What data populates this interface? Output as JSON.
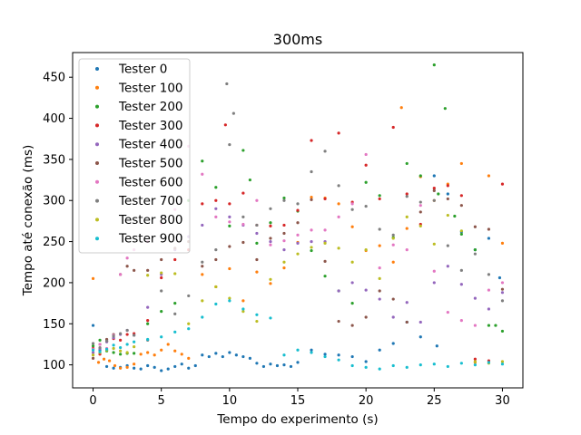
{
  "chart_data": {
    "type": "scatter",
    "title": "300ms",
    "xlabel": "Tempo do experimento (s)",
    "ylabel": "Tempo até conexão (ms)",
    "xlim": [
      -1.5,
      31.5
    ],
    "ylim": [
      72,
      480
    ],
    "xticks": [
      0,
      5,
      10,
      15,
      20,
      25,
      30
    ],
    "yticks": [
      100,
      150,
      200,
      250,
      300,
      350,
      400,
      450
    ],
    "grid": false,
    "legend_position": "top-left",
    "series": [
      {
        "name": "Tester 0",
        "color": "#1f77b4",
        "x": [
          0,
          0.5,
          1,
          1.5,
          2,
          2.5,
          3,
          3.5,
          4,
          4.5,
          5,
          5.5,
          6,
          6.5,
          7,
          7.5,
          8,
          8.5,
          9,
          9.5,
          10,
          10.5,
          11,
          11.5,
          12,
          12.5,
          13,
          13.5,
          14,
          14.5,
          15,
          16,
          17,
          18,
          19,
          20,
          21,
          22,
          23,
          24,
          25,
          25.2,
          26,
          27,
          28,
          29,
          29.8
        ],
        "y": [
          148,
          118,
          98,
          96,
          97,
          99,
          96,
          95,
          99,
          97,
          93,
          95,
          98,
          101,
          96,
          99,
          112,
          110,
          114,
          110,
          115,
          112,
          110,
          108,
          102,
          98,
          101,
          99,
          100,
          98,
          103,
          118,
          113,
          112,
          110,
          104,
          118,
          126,
          152,
          134,
          330,
          123,
          308,
          262,
          240,
          254,
          206
        ]
      },
      {
        "name": "Tester 100",
        "color": "#ff7f0e",
        "x": [
          0,
          0.4,
          0.8,
          1.2,
          1.6,
          2,
          2.5,
          3,
          3.5,
          4,
          4.5,
          5,
          5.5,
          6,
          6.5,
          7,
          8,
          9,
          10,
          11,
          12,
          13,
          14,
          15,
          16,
          17,
          18,
          19,
          20,
          21,
          22,
          22.6,
          23,
          24,
          25,
          26,
          27,
          28,
          29,
          30
        ],
        "y": [
          205,
          103,
          107,
          105,
          99,
          96,
          97,
          101,
          113,
          115,
          112,
          118,
          125,
          117,
          113,
          108,
          210,
          195,
          217,
          178,
          213,
          199,
          218,
          249,
          304,
          303,
          296,
          268,
          239,
          245,
          225,
          413,
          266,
          329,
          300,
          320,
          345,
          103,
          330,
          248
        ]
      },
      {
        "name": "Tester 200",
        "color": "#2ca02c",
        "x": [
          0,
          0.5,
          1,
          1.5,
          2,
          2.5,
          3,
          4,
          5,
          6,
          7,
          8,
          9,
          10,
          11,
          11.5,
          12,
          13,
          14,
          15,
          16,
          17,
          18,
          19,
          20,
          21,
          22,
          23,
          24,
          25,
          25.3,
          25.8,
          26.5,
          27,
          28,
          29,
          29.5,
          30
        ],
        "y": [
          123,
          130,
          117,
          115,
          113,
          114,
          114,
          150,
          165,
          175,
          300,
          348,
          316,
          269,
          361,
          325,
          248,
          273,
          303,
          287,
          239,
          208,
          190,
          175,
          322,
          306,
          255,
          345,
          330,
          465,
          308,
          412,
          281,
          259,
          240,
          148,
          148,
          141
        ]
      },
      {
        "name": "Tester 300",
        "color": "#d62728",
        "x": [
          0,
          0.5,
          1,
          1.5,
          2,
          2.5,
          3,
          4,
          5,
          6,
          7,
          8,
          9,
          9.7,
          10,
          11,
          12,
          13,
          14,
          15,
          16,
          17,
          18,
          19,
          20,
          21,
          22,
          23,
          24,
          25,
          26,
          27,
          28,
          29,
          30
        ],
        "y": [
          120,
          113,
          129,
          132,
          130,
          137,
          138,
          154,
          206,
          228,
          240,
          296,
          300,
          392,
          296,
          309,
          270,
          269,
          270,
          288,
          373,
          302,
          382,
          298,
          343,
          302,
          389,
          308,
          271,
          315,
          318,
          306,
          107,
          105,
          320
        ]
      },
      {
        "name": "Tester 400",
        "color": "#9467bd",
        "x": [
          0,
          0.5,
          1,
          1.5,
          2,
          2.5,
          3,
          4,
          5,
          6,
          7,
          8,
          9,
          10,
          11,
          12,
          13,
          14,
          15,
          16,
          17,
          18,
          19,
          20,
          21,
          22,
          23,
          24,
          25,
          26,
          27,
          28,
          29,
          30
        ],
        "y": [
          115,
          120,
          128,
          133,
          137,
          142,
          136,
          170,
          210,
          240,
          256,
          270,
          290,
          280,
          270,
          260,
          250,
          240,
          248,
          250,
          250,
          190,
          200,
          191,
          180,
          158,
          176,
          152,
          200,
          220,
          198,
          181,
          168,
          188
        ]
      },
      {
        "name": "Tester 500",
        "color": "#8c564b",
        "x": [
          0,
          0.5,
          1,
          1.5,
          2,
          2.5,
          3,
          4,
          5,
          6,
          7,
          8,
          9,
          10,
          11,
          12,
          13,
          14,
          15,
          16,
          17,
          18,
          19,
          20,
          21,
          22,
          23,
          24,
          25,
          26,
          27,
          28,
          29,
          30
        ],
        "y": [
          108,
          125,
          131,
          137,
          210,
          220,
          215,
          215,
          228,
          242,
          250,
          220,
          228,
          244,
          249,
          228,
          254,
          260,
          273,
          301,
          226,
          153,
          148,
          158,
          190,
          180,
          152,
          286,
          312,
          302,
          294,
          268,
          265,
          192
        ]
      },
      {
        "name": "Tester 600",
        "color": "#e377c2",
        "x": [
          0,
          0.5,
          1,
          1.5,
          2,
          2.5,
          3,
          4,
          5,
          6,
          7,
          8,
          9,
          10,
          11,
          12,
          13,
          14,
          15,
          16,
          17,
          18,
          19,
          20,
          21,
          22,
          23,
          24,
          25,
          26,
          27,
          28,
          29,
          30
        ],
        "y": [
          119,
          125,
          120,
          136,
          210,
          230,
          240,
          250,
          272,
          289,
          366,
          332,
          280,
          274,
          271,
          300,
          246,
          251,
          258,
          264,
          264,
          280,
          296,
          356,
          218,
          246,
          240,
          294,
          214,
          164,
          154,
          148,
          191,
          200
        ]
      },
      {
        "name": "Tester 700",
        "color": "#7f7f7f",
        "x": [
          0,
          0.5,
          1,
          1.5,
          2,
          2.5,
          3,
          4,
          5,
          6,
          7,
          8,
          9,
          9.8,
          10,
          10.3,
          11,
          12,
          13,
          14,
          15,
          16,
          17,
          18,
          19,
          20,
          21,
          22,
          23,
          24,
          25,
          26,
          27,
          28,
          29,
          30
        ],
        "y": [
          126,
          121,
          129,
          135,
          138,
          142,
          136,
          130,
          190,
          162,
          184,
          225,
          240,
          442,
          368,
          406,
          280,
          270,
          290,
          300,
          296,
          335,
          360,
          318,
          289,
          293,
          265,
          258,
          305,
          298,
          300,
          245,
          215,
          235,
          210,
          178
        ]
      },
      {
        "name": "Tester 800",
        "color": "#bcbd22",
        "x": [
          0,
          0.5,
          1,
          1.5,
          2,
          2.5,
          3,
          4,
          5,
          6,
          7,
          8,
          9,
          10,
          11,
          12,
          13,
          14,
          15,
          16,
          17,
          18,
          19,
          20,
          21,
          22,
          23,
          24,
          25,
          26,
          27,
          28,
          29,
          30
        ],
        "y": [
          112,
          115,
          118,
          120,
          117,
          115,
          122,
          209,
          212,
          211,
          150,
          178,
          195,
          181,
          165,
          153,
          204,
          225,
          235,
          243,
          248,
          242,
          225,
          240,
          205,
          254,
          280,
          269,
          247,
          282,
          263,
          104,
          102,
          104
        ]
      },
      {
        "name": "Tester 900",
        "color": "#17becf",
        "x": [
          0,
          0.5,
          1,
          1.5,
          2,
          2.5,
          3,
          4,
          5,
          6,
          7,
          8,
          9,
          10,
          11,
          12,
          13,
          14,
          15,
          16,
          17,
          18,
          19,
          20,
          21,
          22,
          23,
          24,
          25,
          26,
          27,
          28,
          29,
          30
        ],
        "y": [
          118,
          116,
          119,
          124,
          121,
          125,
          128,
          131,
          134,
          140,
          144,
          158,
          174,
          178,
          168,
          161,
          157,
          112,
          118,
          115,
          110,
          106,
          99,
          97,
          95,
          99,
          97,
          100,
          101,
          98,
          102,
          100,
          103,
          101
        ]
      }
    ]
  }
}
